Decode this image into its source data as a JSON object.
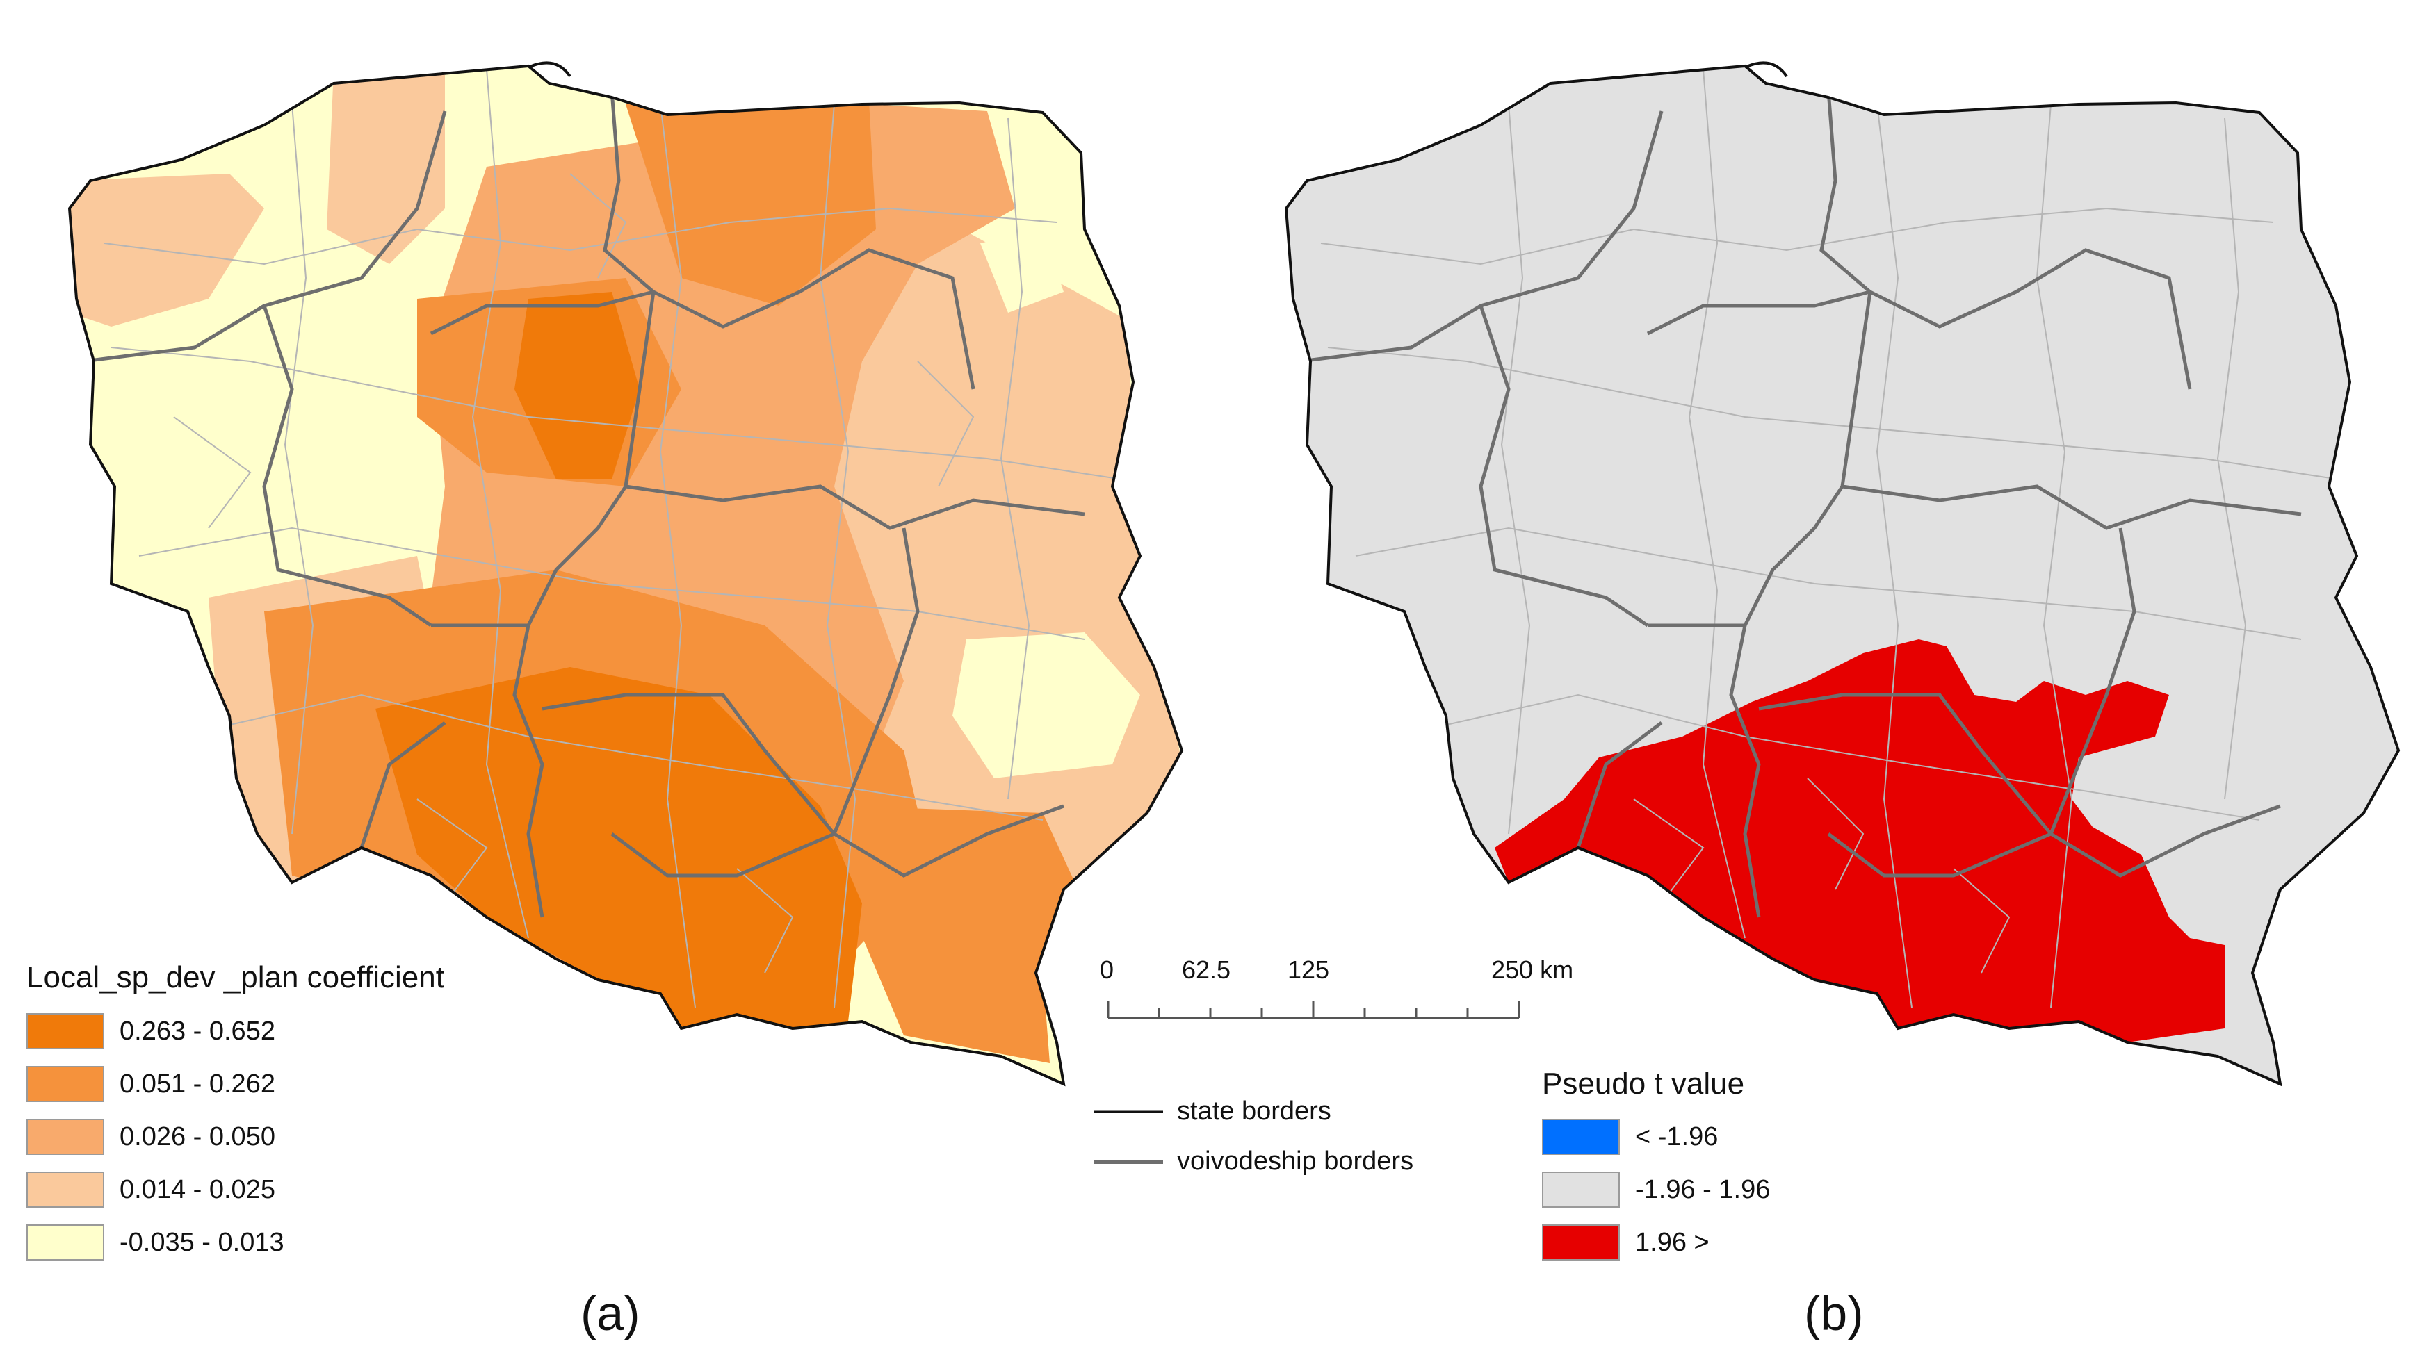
{
  "panels": [
    {
      "id": "a",
      "label": "(a)"
    },
    {
      "id": "b",
      "label": "(b)"
    }
  ],
  "legend_a": {
    "title": "Local_sp_dev _plan coefficient",
    "items": [
      {
        "label": "0.263 - 0.652",
        "color": "#F07A0A"
      },
      {
        "label": "0.051 - 0.262",
        "color": "#F5923C"
      },
      {
        "label": "0.026 - 0.050",
        "color": "#F8AA6C"
      },
      {
        "label": "0.014 - 0.025",
        "color": "#FAC99C"
      },
      {
        "label": "-0.035 - 0.013",
        "color": "#FFFFCC"
      }
    ]
  },
  "legend_b": {
    "title": "Pseudo t value",
    "items": [
      {
        "label": "< -1.96",
        "color": "#0070FF"
      },
      {
        "label": "-1.96 - 1.96",
        "color": "#E1E1E1"
      },
      {
        "label": "1.96  >",
        "color": "#E60000"
      }
    ]
  },
  "scale_bar": {
    "ticks": [
      "0",
      "62.5",
      "125",
      "250 km"
    ]
  },
  "border_legend": {
    "items": [
      {
        "label": "state borders",
        "color": "#111111"
      },
      {
        "label": "voivodeship borders",
        "color": "#6e6e6e"
      }
    ]
  }
}
